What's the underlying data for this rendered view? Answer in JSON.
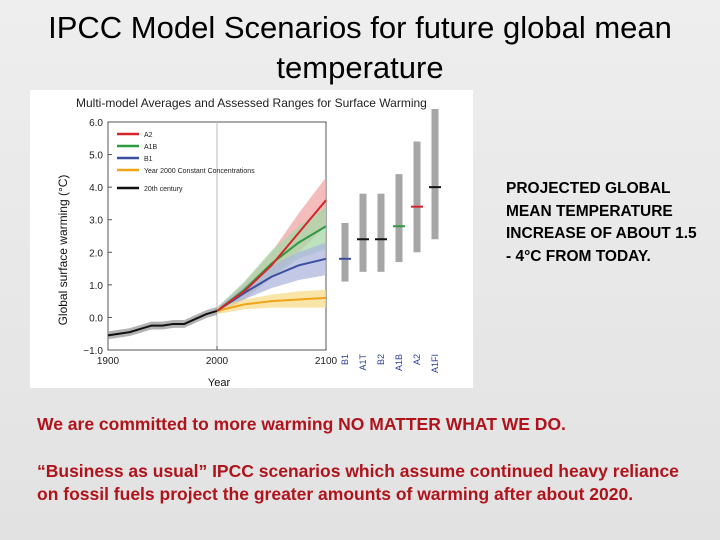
{
  "slide": {
    "title": "IPCC Model Scenarios for future global mean temperature",
    "callout": "PROJECTED GLOBAL MEAN TEMPERATURE INCREASE OF ABOUT 1.5 - 4°C FROM TODAY.",
    "note1": "We are committed to more warming NO MATTER WHAT WE DO.",
    "note2": "“Business as usual” IPCC scenarios which assume continued heavy reliance on fossil fuels project the greater amounts of warming after about 2020.",
    "text_color": "#b0131b"
  },
  "chart_data": {
    "type": "line",
    "title": "Multi-model Averages and Assessed Ranges for Surface Warming",
    "xlabel": "Year",
    "ylabel": "Global surface warming (°C)",
    "xlim": [
      1900,
      2100
    ],
    "ylim": [
      -1.0,
      6.0
    ],
    "x_ticks": [
      "1900",
      "2000",
      "2100"
    ],
    "y_ticks": [
      "−1.0",
      "0.0",
      "1.0",
      "2.0",
      "3.0",
      "4.0",
      "5.0",
      "6.0"
    ],
    "legend_position": "top-left",
    "legend": [
      {
        "label": "A2",
        "color": "#d7262b"
      },
      {
        "label": "A1B",
        "color": "#2e9a42"
      },
      {
        "label": "B1",
        "color": "#3a4fa0"
      },
      {
        "label": "Year 2000 Constant Concentrations",
        "color": "#f0a418"
      },
      {
        "label": "20th century",
        "color": "#111111"
      }
    ],
    "historical": {
      "name": "20th century",
      "color": "#111111",
      "band_color": "#9a9a9a",
      "x": [
        1900,
        1910,
        1920,
        1930,
        1940,
        1950,
        1960,
        1970,
        1980,
        1990,
        2000
      ],
      "y": [
        -0.55,
        -0.5,
        -0.45,
        -0.35,
        -0.25,
        -0.25,
        -0.2,
        -0.2,
        -0.05,
        0.1,
        0.2
      ],
      "spread": 0.12
    },
    "series": [
      {
        "name": "A2",
        "color": "#d7262b",
        "band": "#f0a7a5",
        "x": [
          2000,
          2025,
          2050,
          2075,
          2100
        ],
        "y": [
          0.2,
          0.8,
          1.6,
          2.6,
          3.6
        ],
        "lower": [
          0.1,
          0.55,
          1.2,
          2.0,
          2.8
        ],
        "upper": [
          0.3,
          1.05,
          2.0,
          3.2,
          4.3
        ]
      },
      {
        "name": "A1B",
        "color": "#2e9a42",
        "band": "#a7d8a8",
        "x": [
          2000,
          2025,
          2050,
          2075,
          2100
        ],
        "y": [
          0.2,
          0.85,
          1.65,
          2.3,
          2.8
        ],
        "lower": [
          0.1,
          0.6,
          1.25,
          1.8,
          2.1
        ],
        "upper": [
          0.3,
          1.1,
          2.05,
          2.8,
          3.4
        ]
      },
      {
        "name": "B1",
        "color": "#3a4fa0",
        "band": "#aeb6dd",
        "x": [
          2000,
          2025,
          2050,
          2075,
          2100
        ],
        "y": [
          0.2,
          0.75,
          1.25,
          1.6,
          1.8
        ],
        "lower": [
          0.1,
          0.55,
          0.9,
          1.15,
          1.3
        ],
        "upper": [
          0.3,
          0.95,
          1.6,
          2.0,
          2.3
        ]
      },
      {
        "name": "Year 2000 Constant Concentrations",
        "color": "#f0a418",
        "band": "#f7dc8a",
        "x": [
          2000,
          2025,
          2050,
          2075,
          2100
        ],
        "y": [
          0.2,
          0.4,
          0.5,
          0.55,
          0.6
        ],
        "lower": [
          0.1,
          0.25,
          0.3,
          0.3,
          0.3
        ],
        "upper": [
          0.3,
          0.55,
          0.7,
          0.8,
          0.85
        ]
      }
    ],
    "range_bars": [
      {
        "label": "B1",
        "low": 1.1,
        "high": 2.9,
        "best": 1.8,
        "best_color": "#3a4fa0"
      },
      {
        "label": "A1T",
        "low": 1.4,
        "high": 3.8,
        "best": 2.4,
        "best_color": "#111111"
      },
      {
        "label": "B2",
        "low": 1.4,
        "high": 3.8,
        "best": 2.4,
        "best_color": "#111111"
      },
      {
        "label": "A1B",
        "low": 1.7,
        "high": 4.4,
        "best": 2.8,
        "best_color": "#2e9a42"
      },
      {
        "label": "A2",
        "low": 2.0,
        "high": 5.4,
        "best": 3.4,
        "best_color": "#d7262b"
      },
      {
        "label": "A1FI",
        "low": 2.4,
        "high": 6.4,
        "best": 4.0,
        "best_color": "#111111"
      }
    ],
    "range_bar_color": "#a6a6a6"
  }
}
